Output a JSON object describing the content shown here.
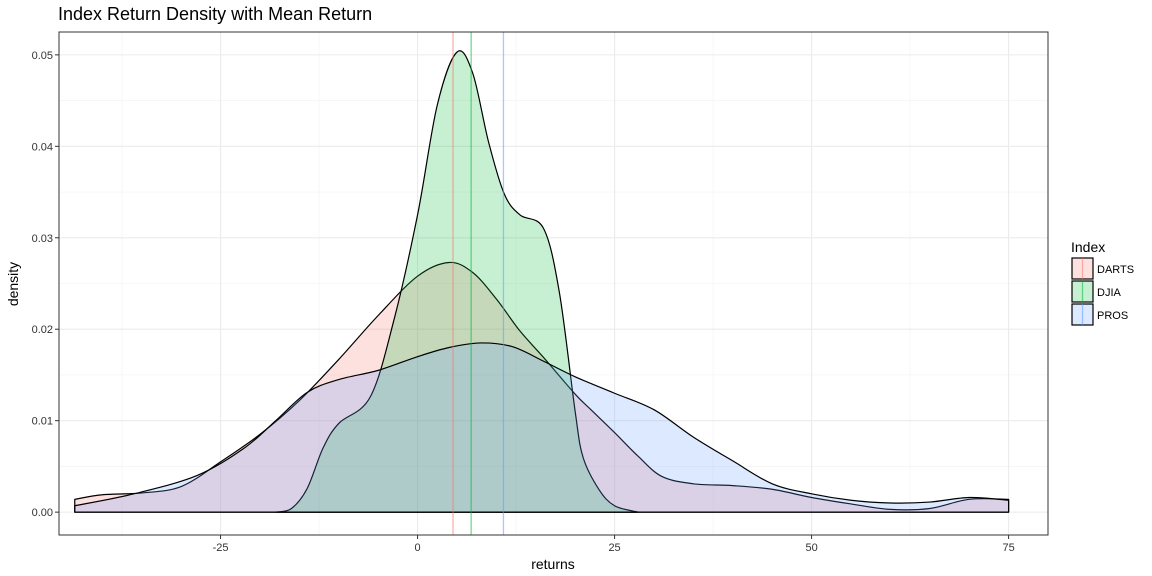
{
  "chart_data": {
    "type": "area",
    "title": "Index Return Density with Mean Return",
    "xlabel": "returns",
    "ylabel": "density",
    "xlim": [
      -45.5,
      80
    ],
    "ylim": [
      -0.0025,
      0.0525
    ],
    "x_ticks": [
      -25,
      0,
      25,
      50,
      75
    ],
    "x_tick_labels": [
      "-25",
      "0",
      "25",
      "50",
      "75"
    ],
    "y_ticks": [
      0.0,
      0.01,
      0.02,
      0.03,
      0.04,
      0.05
    ],
    "y_tick_labels": [
      "0.00",
      "0.01",
      "0.02",
      "0.03",
      "0.04",
      "0.05"
    ],
    "grid": true,
    "legend": {
      "title": "Index",
      "position": "right"
    },
    "series": [
      {
        "name": "DARTS",
        "color": "#F8766D",
        "mean": 4.5,
        "points": [
          [
            -43.5,
            0.0014
          ],
          [
            -40,
            0.0019
          ],
          [
            -35,
            0.0021
          ],
          [
            -30,
            0.0028
          ],
          [
            -25,
            0.0055
          ],
          [
            -20,
            0.0085
          ],
          [
            -15,
            0.0122
          ],
          [
            -10,
            0.0167
          ],
          [
            -5,
            0.0215
          ],
          [
            0,
            0.0258
          ],
          [
            4,
            0.0273
          ],
          [
            7,
            0.0262
          ],
          [
            10,
            0.0233
          ],
          [
            13,
            0.0198
          ],
          [
            16,
            0.0169
          ],
          [
            20,
            0.0129
          ],
          [
            22,
            0.0112
          ],
          [
            25,
            0.0087
          ],
          [
            28,
            0.0061
          ],
          [
            31,
            0.0039
          ],
          [
            35,
            0.0031
          ],
          [
            40,
            0.0029
          ],
          [
            45,
            0.0025
          ],
          [
            50,
            0.0016
          ],
          [
            55,
            0.0009
          ],
          [
            60,
            0.0003
          ],
          [
            65,
            0.0004
          ],
          [
            70,
            0.0014
          ],
          [
            75,
            0.0014
          ]
        ]
      },
      {
        "name": "DJIA",
        "color": "#00BA38",
        "mean": 6.8,
        "points": [
          [
            -18,
            0.0
          ],
          [
            -16,
            0.0004
          ],
          [
            -14,
            0.0026
          ],
          [
            -12,
            0.007
          ],
          [
            -10,
            0.0097
          ],
          [
            -6,
            0.0126
          ],
          [
            -3,
            0.021
          ],
          [
            0,
            0.0325
          ],
          [
            2.5,
            0.0445
          ],
          [
            5,
            0.0503
          ],
          [
            7,
            0.048
          ],
          [
            9,
            0.0405
          ],
          [
            11,
            0.0348
          ],
          [
            13,
            0.0325
          ],
          [
            16,
            0.031
          ],
          [
            18,
            0.024
          ],
          [
            20,
            0.011
          ],
          [
            21,
            0.006
          ],
          [
            23,
            0.0025
          ],
          [
            25,
            0.0007
          ],
          [
            28,
            0.0
          ]
        ]
      },
      {
        "name": "PROS",
        "color": "#619CFF",
        "mean": 10.9,
        "points": [
          [
            -43.5,
            0.0007
          ],
          [
            -36,
            0.002
          ],
          [
            -28,
            0.004
          ],
          [
            -22,
            0.007
          ],
          [
            -18,
            0.01
          ],
          [
            -14,
            0.0131
          ],
          [
            -10,
            0.0145
          ],
          [
            -5,
            0.0155
          ],
          [
            0,
            0.017
          ],
          [
            4,
            0.018
          ],
          [
            8,
            0.0185
          ],
          [
            12,
            0.0181
          ],
          [
            16,
            0.0165
          ],
          [
            20,
            0.0148
          ],
          [
            25,
            0.013
          ],
          [
            30,
            0.0112
          ],
          [
            35,
            0.0082
          ],
          [
            40,
            0.0056
          ],
          [
            45,
            0.0031
          ],
          [
            50,
            0.002
          ],
          [
            55,
            0.0013
          ],
          [
            60,
            0.001
          ],
          [
            65,
            0.0011
          ],
          [
            70,
            0.0016
          ],
          [
            75,
            0.0013
          ]
        ]
      }
    ]
  }
}
